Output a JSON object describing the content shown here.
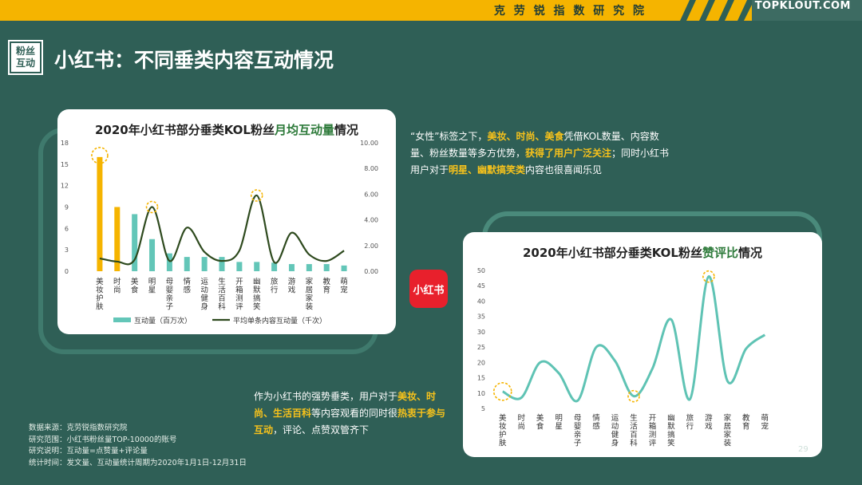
{
  "header": {
    "brand": "克 劳 锐 指 数 研 究 院",
    "logo": "TOPKLOUT.COM",
    "accent_color": "#f5b400",
    "bg_color": "#2f5f56"
  },
  "section_tag": "粉丝互动",
  "title": "小红书：不同垂类内容互动情况",
  "chart_data": [
    {
      "type": "bar",
      "title": "2020年小红书部分垂类KOL粉丝月均互动量情况",
      "categories": [
        "美妆护肤",
        "时尚",
        "美食",
        "明星",
        "母婴亲子",
        "情感",
        "运动健身",
        "生活百科",
        "开箱测评",
        "幽默搞笑",
        "旅行",
        "游戏",
        "家居家装",
        "教育",
        "萌宠"
      ],
      "y_ticks": [
        "0",
        "3",
        "6",
        "9",
        "12",
        "15",
        "18"
      ],
      "y2_ticks": [
        "0.00",
        "2.00",
        "4.00",
        "6.00",
        "8.00",
        "10.00"
      ],
      "ylim": [
        0,
        18
      ],
      "y2lim": [
        0,
        10
      ],
      "series": [
        {
          "name": "互动量（百万次）",
          "kind": "bar",
          "axis": "left",
          "values": [
            16,
            9,
            8,
            4.5,
            2.5,
            2,
            2,
            2,
            1.3,
            1.3,
            1.2,
            1.0,
            1.0,
            1.0,
            0.8
          ],
          "colors": [
            "#f5b400",
            "#f5b400",
            "#63c6b8",
            "#63c6b8",
            "#63c6b8",
            "#63c6b8",
            "#63c6b8",
            "#63c6b8",
            "#63c6b8",
            "#63c6b8",
            "#63c6b8",
            "#63c6b8",
            "#63c6b8",
            "#63c6b8",
            "#63c6b8"
          ]
        },
        {
          "name": "平均单条内容互动量（千次）",
          "kind": "line",
          "axis": "right",
          "color": "#2e4a1e",
          "values": [
            1.0,
            0.75,
            0.9,
            5.0,
            0.8,
            3.4,
            1.5,
            0.8,
            1.6,
            5.9,
            0.7,
            3.0,
            1.3,
            0.8,
            1.6
          ]
        }
      ],
      "highlights": [
        0,
        3,
        9
      ]
    },
    {
      "type": "line",
      "title": "2020年小红书部分垂类KOL粉丝赞评比情况",
      "categories": [
        "美妆护肤",
        "时尚",
        "美食",
        "明星",
        "母婴亲子",
        "情感",
        "运动健身",
        "生活百科",
        "开箱测评",
        "幽默搞笑",
        "旅行",
        "游戏",
        "家居家装",
        "教育",
        "萌宠"
      ],
      "y_ticks": [
        "5",
        "10",
        "15",
        "20",
        "25",
        "30",
        "35",
        "40",
        "45",
        "50"
      ],
      "ylim": [
        5,
        50
      ],
      "series": [
        {
          "name": "赞评比",
          "color": "#5fc3b4",
          "values": [
            10.5,
            8.5,
            20,
            16.5,
            7.5,
            25,
            20.5,
            9,
            18,
            34,
            8,
            48,
            14,
            24.5,
            29
          ]
        }
      ],
      "highlights": [
        0,
        7,
        11
      ]
    }
  ],
  "chart1": {
    "title_pre": "2020年小红书部分垂类KOL粉丝",
    "title_hl": "月均互动量",
    "title_post": "情况"
  },
  "chart2": {
    "title_pre": "2020年小红书部分垂类KOL粉丝",
    "title_hl": "赞评比",
    "title_post": "情况"
  },
  "para1": {
    "a": "“女性”标签之下，",
    "b": "美妆、时尚、美食",
    "c": "凭借KOL数量、内容数量、粉丝数量等多方优势，",
    "d": "获得了用户广泛关注",
    "e": "；同时小红书用户对于",
    "f": "明星、幽默搞笑类",
    "g": "内容也很喜闻乐见"
  },
  "para2": {
    "a": "作为小红书的强势垂类，用户对于",
    "b": "美妆、时尚、生活百科",
    "c": "等内容观看的同时很",
    "d": "热衷于参与互动",
    "e": "，评论、点赞双管齐下"
  },
  "app_logo": "小红书",
  "notes": [
    "数据来源：克劳锐指数研究院",
    "研究范围：小红书粉丝量TOP-10000的账号",
    "研究说明：互动量=点赞量+评论量",
    "统计时间：发文量、互动量统计周期为2020年1月1日-12月31日"
  ],
  "page_number": "29"
}
